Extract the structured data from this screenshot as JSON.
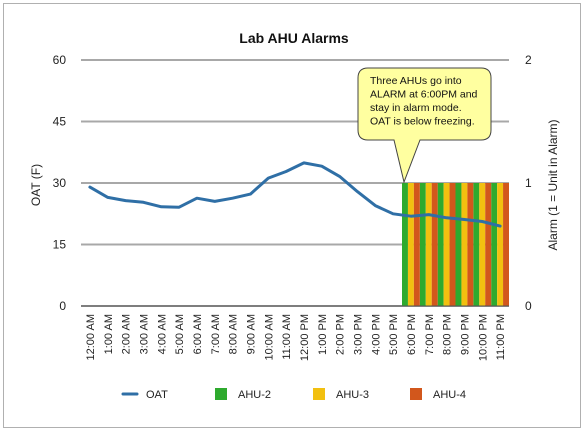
{
  "chart_data": {
    "type": "bar",
    "title": "Lab AHU Alarms",
    "xlabel": "",
    "ylabel": "OAT (F)",
    "y2label": "Alarm (1 = Unit in Alarm)",
    "ylim": [
      0,
      60
    ],
    "y_ticks": [
      "0",
      "15",
      "30",
      "45",
      "60"
    ],
    "y2lim": [
      0,
      2
    ],
    "y2_ticks": [
      "0",
      "1",
      "2"
    ],
    "grid": true,
    "legend_position": "bottom",
    "categories": [
      "12:00 AM",
      "1:00 AM",
      "2:00 AM",
      "3:00 AM",
      "4:00 AM",
      "5:00 AM",
      "6:00 AM",
      "7:00 AM",
      "8:00 AM",
      "9:00 AM",
      "10:00 AM",
      "11:00 AM",
      "12:00 PM",
      "1:00 PM",
      "2:00 PM",
      "3:00 PM",
      "4:00 PM",
      "5:00 PM",
      "6:00 PM",
      "7:00 PM",
      "8:00 PM",
      "9:00 PM",
      "10:00 PM",
      "11:00 PM"
    ],
    "series": [
      {
        "name": "OAT",
        "kind": "line",
        "axis": "left",
        "color": "#2f6fa6",
        "values": [
          29,
          26.5,
          25.7,
          25.3,
          24.2,
          24.1,
          26.3,
          25.5,
          26.3,
          27.3,
          31.2,
          32.8,
          34.9,
          34.1,
          31.6,
          27.9,
          24.5,
          22.5,
          21.9,
          22.3,
          21.5,
          21.1,
          20.6,
          19.5
        ]
      },
      {
        "name": "AHU-2",
        "kind": "bar",
        "axis": "right",
        "color": "#2eaa2e",
        "values": [
          0,
          0,
          0,
          0,
          0,
          0,
          0,
          0,
          0,
          0,
          0,
          0,
          0,
          0,
          0,
          0,
          0,
          0,
          1,
          1,
          1,
          1,
          1,
          1
        ]
      },
      {
        "name": "AHU-3",
        "kind": "bar",
        "axis": "right",
        "color": "#f2c010",
        "values": [
          0,
          0,
          0,
          0,
          0,
          0,
          0,
          0,
          0,
          0,
          0,
          0,
          0,
          0,
          0,
          0,
          0,
          0,
          1,
          1,
          1,
          1,
          1,
          1
        ]
      },
      {
        "name": "AHU-4",
        "kind": "bar",
        "axis": "right",
        "color": "#d2571c",
        "values": [
          0,
          0,
          0,
          0,
          0,
          0,
          0,
          0,
          0,
          0,
          0,
          0,
          0,
          0,
          0,
          0,
          0,
          0,
          1,
          1,
          1,
          1,
          1,
          1
        ]
      }
    ],
    "annotation": {
      "lines": [
        "Three AHUs go into",
        "ALARM at 6:00PM and",
        "stay in alarm mode.",
        "OAT is below freezing."
      ],
      "fill": "#ffffa0",
      "points_to": "6:00 PM"
    }
  }
}
